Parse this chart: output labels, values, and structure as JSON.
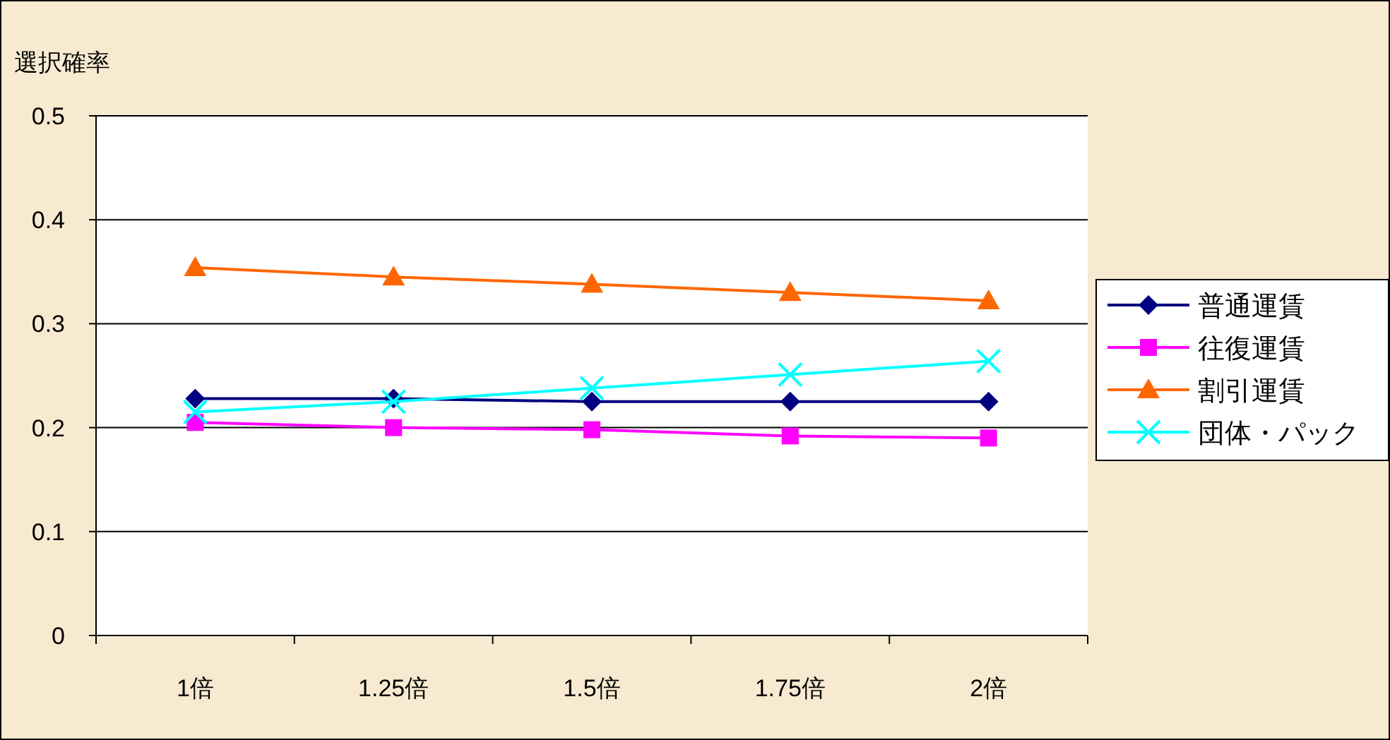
{
  "chart_data": {
    "type": "line",
    "ylabel": "選択確率",
    "categories": [
      "1倍",
      "1.25倍",
      "1.5倍",
      "1.75倍",
      "2倍"
    ],
    "ylim": [
      0,
      0.5
    ],
    "yticks": [
      0,
      0.1,
      0.2,
      0.3,
      0.4,
      0.5
    ],
    "grid": "y",
    "legend": "right",
    "line_style": "solid",
    "series": [
      {
        "name": "普通運賃",
        "color": "#000080",
        "marker": "diamond",
        "values": [
          0.228,
          0.228,
          0.225,
          0.225,
          0.225
        ]
      },
      {
        "name": "往復運賃",
        "color": "#ff00ff",
        "marker": "square",
        "values": [
          0.205,
          0.2,
          0.198,
          0.192,
          0.19
        ]
      },
      {
        "name": "割引運賃",
        "color": "#ff6600",
        "marker": "triangle",
        "values": [
          0.354,
          0.345,
          0.338,
          0.33,
          0.322
        ]
      },
      {
        "name": "団体・パック",
        "color": "#00ffff",
        "marker": "cross",
        "values": [
          0.215,
          0.225,
          0.238,
          0.251,
          0.264
        ]
      }
    ]
  }
}
